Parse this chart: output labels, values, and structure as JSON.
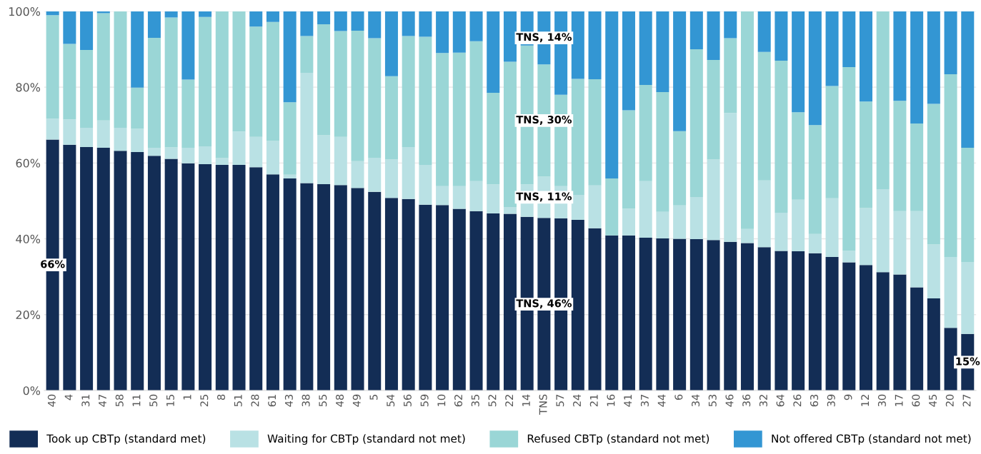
{
  "chart_data": {
    "type": "bar",
    "stacked": true,
    "categories": [
      "40",
      "4",
      "31",
      "47",
      "58",
      "11",
      "50",
      "15",
      "1",
      "25",
      "8",
      "51",
      "28",
      "61",
      "43",
      "38",
      "55",
      "48",
      "49",
      "5",
      "54",
      "56",
      "59",
      "10",
      "62",
      "35",
      "52",
      "22",
      "14",
      "TNS",
      "57",
      "24",
      "21",
      "16",
      "41",
      "37",
      "44",
      "6",
      "34",
      "53",
      "46",
      "36",
      "32",
      "64",
      "26",
      "63",
      "39",
      "9",
      "12",
      "30",
      "17",
      "60",
      "45",
      "20",
      "27"
    ],
    "series": [
      {
        "name": "Took up CBTp (standard met)",
        "color": "#132d55",
        "values": [
          66.2,
          64.8,
          64.2,
          64.0,
          63.2,
          62.9,
          61.9,
          61.1,
          59.9,
          59.7,
          59.5,
          59.5,
          58.9,
          57.0,
          55.9,
          54.7,
          54.4,
          54.2,
          53.4,
          52.4,
          50.8,
          50.5,
          49.0,
          48.9,
          47.9,
          47.3,
          46.7,
          46.6,
          45.8,
          45.5,
          45.4,
          45.0,
          42.8,
          40.9,
          40.9,
          40.3,
          40.1,
          40.0,
          39.9,
          39.7,
          39.2,
          38.9,
          37.8,
          36.8,
          36.7,
          36.2,
          35.2,
          33.8,
          33.1,
          31.2,
          30.6,
          27.2,
          24.3,
          16.5,
          14.9
        ],
        "value_labels": [
          "66%",
          null,
          null,
          null,
          null,
          null,
          null,
          null,
          null,
          null,
          null,
          null,
          null,
          null,
          null,
          null,
          null,
          null,
          null,
          null,
          null,
          null,
          null,
          null,
          null,
          null,
          null,
          null,
          null,
          "TNS, 46%",
          null,
          null,
          null,
          null,
          null,
          null,
          null,
          null,
          null,
          null,
          null,
          null,
          null,
          null,
          null,
          null,
          null,
          null,
          null,
          null,
          null,
          null,
          null,
          null,
          "15%"
        ]
      },
      {
        "name": "Waiting for CBTp (standard not met)",
        "color": "#b9e1e4",
        "values": [
          5.5,
          6.7,
          5.1,
          7.2,
          6.1,
          6.1,
          2.1,
          3.0,
          4.1,
          4.7,
          1.8,
          8.8,
          8.0,
          8.8,
          1.0,
          29.1,
          12.9,
          12.7,
          7.1,
          9.0,
          10.1,
          13.7,
          10.5,
          5.0,
          6.0,
          7.9,
          7.6,
          1.8,
          8.5,
          10.9,
          8.5,
          6.6,
          11.3,
          0,
          7.0,
          14.9,
          7.0,
          8.8,
          11.1,
          21.2,
          34.0,
          3.7,
          17.6,
          10.1,
          13.6,
          5.1,
          15.5,
          3.0,
          15.0,
          21.9,
          16.7,
          20.1,
          14.2,
          18.7,
          19.0
        ],
        "value_labels": [
          null,
          null,
          null,
          null,
          null,
          null,
          null,
          null,
          null,
          null,
          null,
          null,
          null,
          null,
          null,
          null,
          null,
          null,
          null,
          null,
          null,
          null,
          null,
          null,
          null,
          null,
          null,
          null,
          null,
          "TNS, 11%",
          null,
          null,
          null,
          null,
          null,
          null,
          null,
          null,
          null,
          null,
          null,
          null,
          null,
          null,
          null,
          null,
          null,
          null,
          null,
          null,
          null,
          null,
          null,
          null,
          null
        ]
      },
      {
        "name": "Refused CBTp (standard not met)",
        "color": "#9ad6d6",
        "values": [
          27.3,
          19.9,
          20.5,
          28.3,
          30.7,
          10.9,
          29.0,
          34.3,
          18.0,
          34.1,
          38.7,
          31.7,
          29.1,
          31.4,
          19.1,
          9.7,
          29.3,
          27.9,
          34.4,
          31.5,
          22.0,
          29.3,
          33.8,
          35.1,
          35.2,
          36.9,
          24.2,
          38.3,
          36.7,
          29.6,
          24.1,
          30.6,
          28.0,
          15.0,
          26.0,
          25.4,
          31.6,
          19.6,
          39.0,
          26.3,
          19.7,
          57.4,
          33.9,
          40.1,
          23.1,
          28.7,
          29.6,
          48.5,
          28.1,
          46.9,
          29.1,
          23.1,
          37.1,
          48.2,
          30.1
        ],
        "value_labels": [
          null,
          null,
          null,
          null,
          null,
          null,
          null,
          null,
          null,
          null,
          null,
          null,
          null,
          null,
          null,
          null,
          null,
          null,
          null,
          null,
          null,
          null,
          null,
          null,
          null,
          null,
          null,
          null,
          null,
          "TNS, 30%",
          null,
          null,
          null,
          null,
          null,
          null,
          null,
          null,
          null,
          null,
          null,
          null,
          null,
          null,
          null,
          null,
          null,
          null,
          null,
          null,
          null,
          null,
          null,
          null,
          null
        ]
      },
      {
        "name": "Not offered CBTp (standard not met)",
        "color": "#3396d3",
        "values": [
          1.0,
          8.6,
          10.2,
          0.5,
          0,
          20.1,
          7.0,
          1.6,
          18.0,
          1.5,
          0,
          0,
          4.0,
          2.8,
          24.0,
          6.5,
          3.4,
          5.2,
          5.1,
          7.1,
          17.1,
          6.5,
          6.7,
          11.0,
          10.9,
          7.9,
          21.5,
          13.3,
          9.0,
          14.0,
          22.0,
          17.8,
          17.9,
          44.1,
          26.1,
          19.4,
          21.3,
          31.6,
          10.0,
          12.8,
          7.1,
          0,
          10.7,
          13.0,
          26.6,
          30.0,
          19.7,
          14.7,
          23.8,
          0,
          23.6,
          29.6,
          24.4,
          16.6,
          36.0
        ],
        "value_labels": [
          null,
          null,
          null,
          null,
          null,
          null,
          null,
          null,
          null,
          null,
          null,
          null,
          null,
          null,
          null,
          null,
          null,
          null,
          null,
          null,
          null,
          null,
          null,
          null,
          null,
          null,
          null,
          null,
          null,
          "TNS, 14%",
          null,
          null,
          null,
          null,
          null,
          null,
          null,
          null,
          null,
          null,
          null,
          null,
          null,
          null,
          null,
          null,
          null,
          null,
          null,
          null,
          null,
          null,
          null,
          null,
          null
        ]
      }
    ],
    "ylim": [
      0,
      100
    ],
    "yticks": [
      {
        "value": 0,
        "label": "0%"
      },
      {
        "value": 20,
        "label": "20%"
      },
      {
        "value": 40,
        "label": "40%"
      },
      {
        "value": 60,
        "label": "60%"
      },
      {
        "value": 80,
        "label": "80%"
      },
      {
        "value": 100,
        "label": "100%"
      }
    ],
    "grid": "y",
    "legend": "bottom"
  }
}
